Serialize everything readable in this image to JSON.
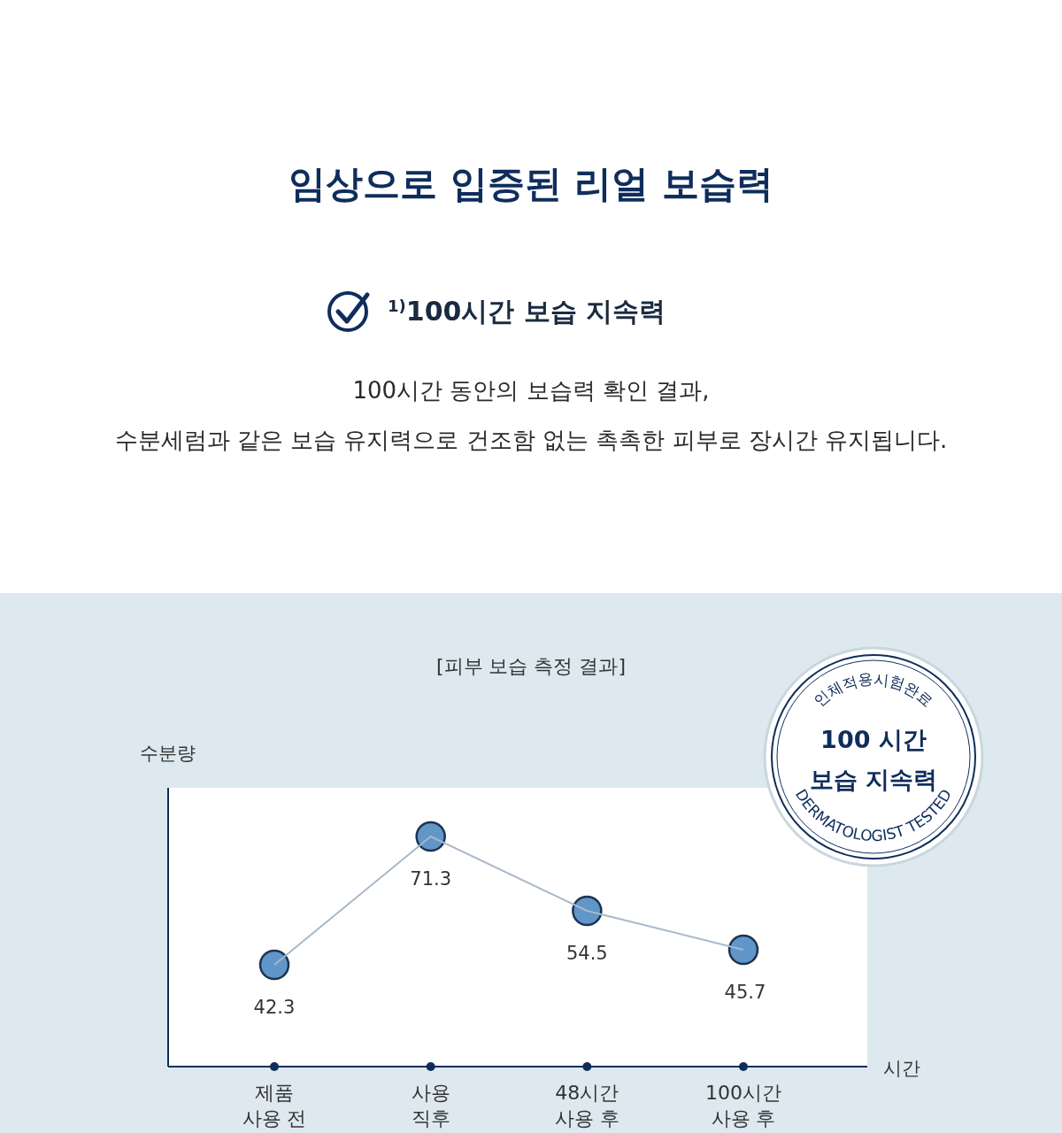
{
  "chart_data": {
    "type": "line",
    "title": "임상으로 입증된 리얼 보습력",
    "subtitle": "$^{1)}$100시간 보습 지속력",
    "annotations": [
      "100시간 동안의 보습력 확인 결과,",
      "수분세럼과 같은 보습 유지력으로 건조함 없는 촉촉한 피부로 장시간 유지됩니다.",
      "[피부 보습 측정 결과]",
      "인체적용시험완료",
      "100 시간",
      "보습 지속력",
      "DERMATOLOGIST TESTED"
    ],
    "ylabel": "수분량",
    "xlabel": "시간",
    "categories": [
      "제품\n사용 전",
      "사용\n직후",
      "48시간\n사용 후",
      "100시간\n사용 후"
    ],
    "series": [
      {
        "color": "#6096c8",
        "values": [
          42.3,
          71.3,
          54.5,
          45.7
        ]
      }
    ],
    "marker": "circle",
    "data_labels": true
  }
}
